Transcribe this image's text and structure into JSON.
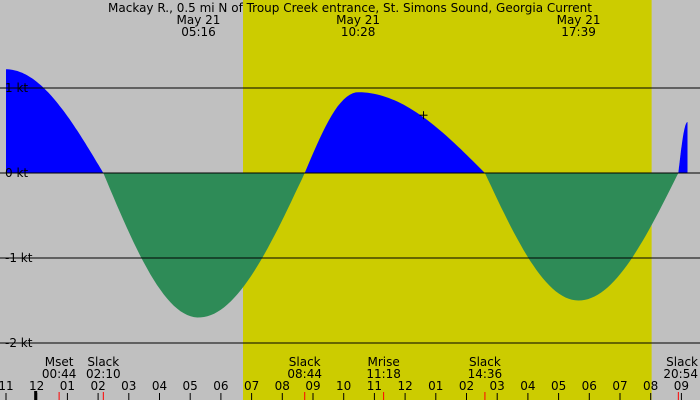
{
  "chart_data": {
    "type": "area",
    "title": "Mackay R., 0.5 mi N of Troup Creek entrance, St. Simons Sound, Georgia Current",
    "xlabel": "",
    "ylabel": "",
    "x_unit": "hour",
    "xlim": [
      11,
      33.2
    ],
    "ylim": [
      -2,
      1.5
    ],
    "grid": true,
    "y_ticks": [
      {
        "value": 1,
        "label": "1 kt"
      },
      {
        "value": 0,
        "label": "0 kt"
      },
      {
        "value": -1,
        "label": "-1 kt"
      },
      {
        "value": -2,
        "label": "-2 kt"
      }
    ],
    "x_ticks": [
      {
        "value": 11,
        "label": "11"
      },
      {
        "value": 12,
        "label": "12"
      },
      {
        "value": 13,
        "label": "01"
      },
      {
        "value": 14,
        "label": "02"
      },
      {
        "value": 15,
        "label": "03"
      },
      {
        "value": 16,
        "label": "04"
      },
      {
        "value": 17,
        "label": "05"
      },
      {
        "value": 18,
        "label": "06"
      },
      {
        "value": 19,
        "label": "07"
      },
      {
        "value": 20,
        "label": "08"
      },
      {
        "value": 21,
        "label": "09"
      },
      {
        "value": 22,
        "label": "10"
      },
      {
        "value": 23,
        "label": "11"
      },
      {
        "value": 24,
        "label": "12"
      },
      {
        "value": 25,
        "label": "01"
      },
      {
        "value": 26,
        "label": "02"
      },
      {
        "value": 27,
        "label": "03"
      },
      {
        "value": 28,
        "label": "04"
      },
      {
        "value": 29,
        "label": "05"
      },
      {
        "value": 30,
        "label": "06"
      },
      {
        "value": 31,
        "label": "07"
      },
      {
        "value": 32,
        "label": "08"
      },
      {
        "value": 33,
        "label": "09"
      }
    ],
    "daylight": {
      "start": 18.72,
      "end": 32.03
    },
    "extrema": [
      {
        "x": 11.0,
        "y": 1.22
      },
      {
        "x": 17.27,
        "y": -1.7
      },
      {
        "x": 22.47,
        "y": 0.95
      },
      {
        "x": 29.65,
        "y": -1.5
      },
      {
        "x": 33.2,
        "y": 0.6
      }
    ],
    "slacks": [
      14.17,
      20.73,
      26.6,
      32.9
    ],
    "top_labels": [
      {
        "x": 17.27,
        "date": "May 21",
        "time": "05:16"
      },
      {
        "x": 22.47,
        "date": "May 21",
        "time": "10:28"
      },
      {
        "x": 29.65,
        "date": "May 21",
        "time": "17:39"
      }
    ],
    "bottom_events": [
      {
        "x": 12.73,
        "name": "Mset",
        "time": "00:44"
      },
      {
        "x": 14.17,
        "name": "Slack",
        "time": "02:10"
      },
      {
        "x": 20.73,
        "name": "Slack",
        "time": "08:44"
      },
      {
        "x": 23.3,
        "name": "Mrise",
        "time": "11:18"
      },
      {
        "x": 26.6,
        "name": "Slack",
        "time": "14:36"
      },
      {
        "x": 32.9,
        "name": "Slack",
        "time": "20:54"
      }
    ],
    "red_marks": [
      12.73,
      14.17,
      20.73,
      23.3,
      26.6,
      32.9
    ],
    "black_marks": [
      11.95
    ],
    "current_marker": {
      "x": 24.6,
      "y": 0.68
    },
    "flood_color": "#0000ff",
    "ebb_color": "#2e8b57",
    "night_color": "#c0c0c0",
    "day_color": "#cccc00"
  }
}
